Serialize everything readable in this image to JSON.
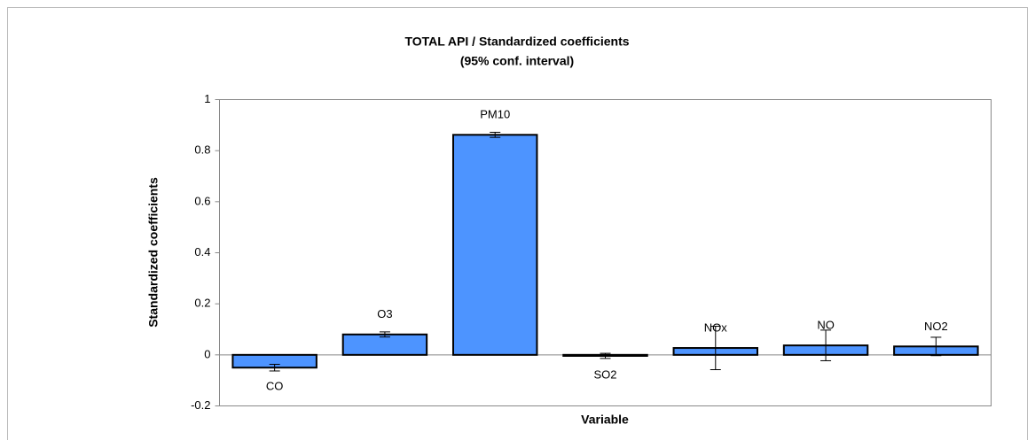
{
  "chart_data": {
    "type": "bar",
    "title": "TOTAL API / Standardized coefficients",
    "subtitle": "(95% conf. interval)",
    "y_label": "Standardized coefficients",
    "x_label": "Variable",
    "categories": [
      "CO",
      "O3",
      "PM10",
      "SO2",
      "NOx",
      "NO",
      "NO2"
    ],
    "values": [
      -0.05,
      0.08,
      0.862,
      -0.004,
      0.027,
      0.037,
      0.033
    ],
    "errors": [
      0.013,
      0.01,
      0.01,
      0.01,
      0.085,
      0.06,
      0.036
    ],
    "color": "#4d94ff",
    "ylim": [
      -0.2,
      1
    ],
    "yticks": [
      -0.2,
      0,
      0.2,
      0.4,
      0.6,
      0.8,
      1
    ],
    "grid": false
  }
}
